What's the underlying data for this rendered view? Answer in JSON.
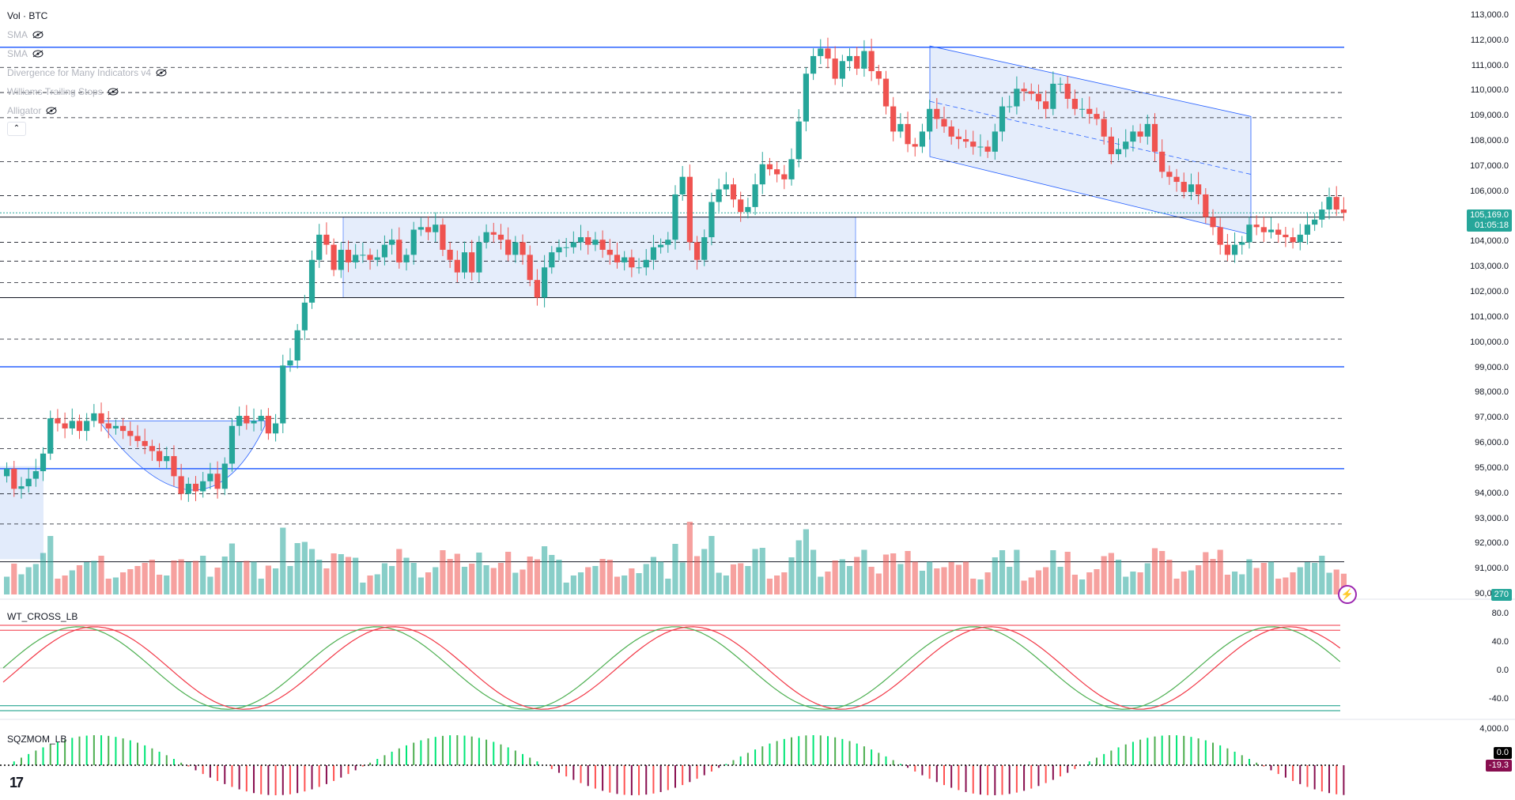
{
  "legend": {
    "title": "Vol · BTC",
    "indicators": [
      "SMA",
      "SMA",
      "Divergence for Many Indicators v4",
      "Williams Trailing Stops",
      "Alligator"
    ]
  },
  "panes": {
    "wt_label": "WT_CROSS_LB",
    "sqz_label": "SQZMOM_LB"
  },
  "price_axis": {
    "ticks": [
      "113,000.0",
      "112,000.0",
      "111,000.0",
      "110,000.0",
      "109,000.0",
      "108,000.0",
      "107,000.0",
      "106,000.0",
      "105,000.0",
      "104,000.0",
      "103,000.0",
      "102,000.0",
      "101,000.0",
      "100,000.0",
      "99,000.0",
      "98,000.0",
      "97,000.0",
      "96,000.0",
      "95,000.0",
      "94,000.0",
      "93,000.0",
      "92,000.0",
      "91,000.0",
      "90,000.0"
    ],
    "last_price": "105,169.0",
    "countdown": "01:05:18",
    "volume_badge": "270",
    "wt_ticks": [
      "80.0",
      "40.0",
      "0.0",
      "-40.0"
    ],
    "sqz_tick": "4,000.0",
    "sqz_badge_a": "0.0",
    "sqz_badge_b": "-19.3"
  },
  "colors": {
    "up": "#26a69a",
    "down": "#ef5350",
    "level_blue": "#2962ff",
    "zone_fill": "#c5d8f7",
    "wt_green": "#4caf50",
    "wt_red": "#f23645"
  },
  "chart_data": {
    "type": "candlestick",
    "ylim": [
      90000,
      113000
    ],
    "horizontal_levels_solid_blue": [
      111750,
      99050,
      95000
    ],
    "horizontal_levels_solid_black": [
      105000,
      101800,
      91300
    ],
    "horizontal_levels_dashed": [
      110950,
      109950,
      108950,
      107200,
      105850,
      104000,
      103250,
      102400,
      100150,
      97000,
      95800,
      94000,
      92800
    ],
    "wt_levels": [
      60,
      53,
      -53,
      -60
    ],
    "closes": [
      95000,
      94200,
      94300,
      94600,
      94900,
      95600,
      97000,
      96800,
      96600,
      96900,
      96500,
      96900,
      97200,
      96800,
      96600,
      96700,
      96500,
      96300,
      96100,
      95900,
      95700,
      95300,
      95500,
      94700,
      94000,
      94400,
      94100,
      94500,
      94800,
      94200,
      95200,
      96700,
      97100,
      96800,
      96900,
      97100,
      96400,
      96800,
      99100,
      99300,
      100500,
      101600,
      103300,
      104300,
      103900,
      102900,
      103700,
      103200,
      103500,
      103500,
      103300,
      103400,
      103900,
      104100,
      103200,
      103500,
      104500,
      104600,
      104400,
      104700,
      103700,
      103300,
      102800,
      103600,
      102800,
      104000,
      104400,
      104300,
      104100,
      103500,
      104000,
      103500,
      102500,
      101800,
      103000,
      103600,
      103800,
      103800,
      104000,
      104200,
      103900,
      104100,
      103700,
      103500,
      103200,
      103400,
      103000,
      103000,
      103300,
      103800,
      103900,
      104100,
      105900,
      106600,
      104000,
      103300,
      104200,
      105600,
      106100,
      106300,
      105700,
      105200,
      105400,
      106300,
      107100,
      106900,
      106700,
      106500,
      107300,
      108800,
      110700,
      111400,
      111700,
      111300,
      110500,
      111200,
      111400,
      110900,
      111600,
      110800,
      110500,
      109400,
      108400,
      108700,
      107900,
      107800,
      108400,
      109300,
      108900,
      108600,
      108200,
      108100,
      108000,
      107800,
      107800,
      107600,
      108400,
      109400,
      109400,
      110100,
      110000,
      109900,
      109600,
      109300,
      110300,
      110300,
      109700,
      109300,
      109300,
      109100,
      108900,
      108200,
      107500,
      107700,
      108000,
      108400,
      108200,
      108700,
      107600,
      106800,
      106600,
      106400,
      106000,
      106300,
      105900,
      105000,
      104600,
      103900,
      103500,
      103900,
      104000,
      104700,
      104600,
      104400,
      104500,
      104300,
      104200,
      104000,
      104300,
      104700,
      104900,
      105300,
      105800,
      105300,
      105169
    ]
  }
}
